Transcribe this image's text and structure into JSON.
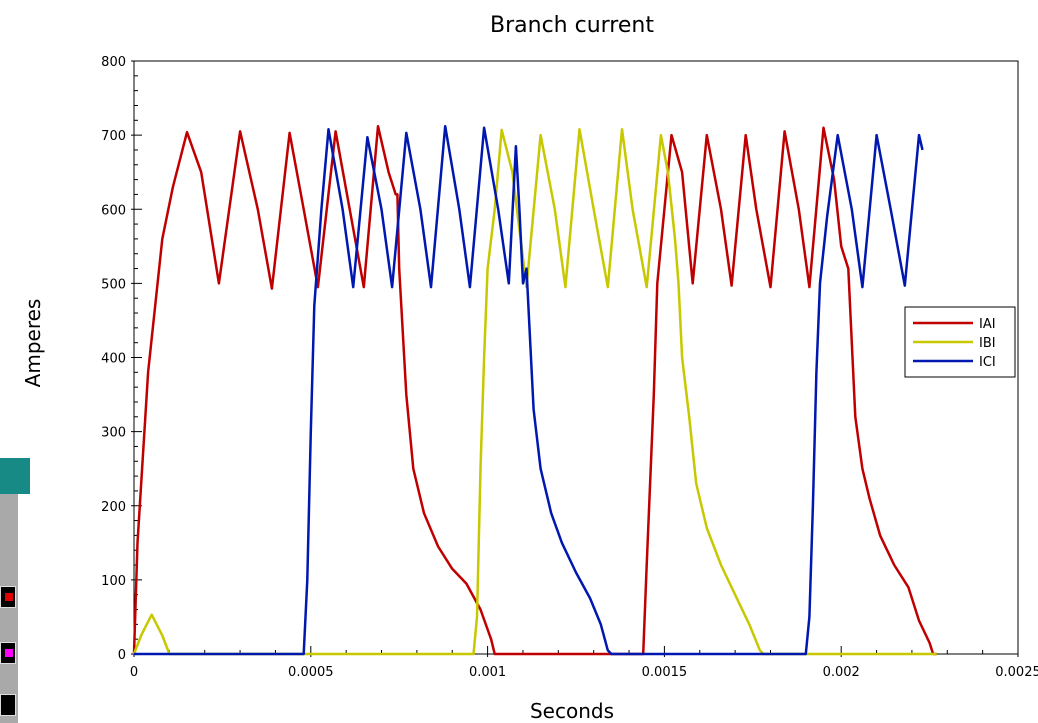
{
  "chart_data": {
    "type": "line",
    "title": "Branch current",
    "xlabel": "Seconds",
    "ylabel": "Amperes",
    "xlim": [
      0,
      0.0025
    ],
    "ylim": [
      0,
      800
    ],
    "x_ticks": [
      0,
      0.0005,
      0.001,
      0.0015,
      0.002,
      0.0025
    ],
    "x_tick_labels": [
      "0",
      "0.0005",
      "0.001",
      "0.0015",
      "0.002",
      "0.0025"
    ],
    "y_ticks": [
      0,
      100,
      200,
      300,
      400,
      500,
      600,
      700,
      800
    ],
    "y_tick_labels": [
      "0",
      "100",
      "200",
      "300",
      "400",
      "500",
      "600",
      "700",
      "800"
    ],
    "legend_position": "right",
    "grid": false,
    "series": [
      {
        "name": "IAI",
        "color": "#c00000",
        "points": [
          [
            0,
            0
          ],
          [
            1e-05,
            150
          ],
          [
            4e-05,
            380
          ],
          [
            8e-05,
            560
          ],
          [
            0.00011,
            630
          ],
          [
            0.00015,
            704
          ],
          [
            0.00019,
            650
          ],
          [
            0.00024,
            500
          ],
          [
            0.0003,
            705
          ],
          [
            0.00035,
            600
          ],
          [
            0.00039,
            493
          ],
          [
            0.00044,
            703
          ],
          [
            0.00048,
            600
          ],
          [
            0.00052,
            495
          ],
          [
            0.00057,
            705
          ],
          [
            0.00061,
            600
          ],
          [
            0.00065,
            495
          ],
          [
            0.00069,
            712
          ],
          [
            0.00072,
            650
          ],
          [
            0.00074,
            620
          ],
          [
            0.000745,
            620
          ],
          [
            0.00075,
            520
          ],
          [
            0.00077,
            350
          ],
          [
            0.00079,
            250
          ],
          [
            0.00082,
            190
          ],
          [
            0.00086,
            145
          ],
          [
            0.0009,
            115
          ],
          [
            0.00094,
            95
          ],
          [
            0.00098,
            60
          ],
          [
            0.00101,
            20
          ],
          [
            0.00102,
            0
          ],
          [
            0.00144,
            0
          ],
          [
            0.00145,
            120
          ],
          [
            0.00147,
            350
          ],
          [
            0.00148,
            500
          ],
          [
            0.0015,
            600
          ],
          [
            0.00152,
            700
          ],
          [
            0.00155,
            650
          ],
          [
            0.00158,
            500
          ],
          [
            0.00162,
            700
          ],
          [
            0.00166,
            600
          ],
          [
            0.00169,
            497
          ],
          [
            0.00173,
            700
          ],
          [
            0.00176,
            600
          ],
          [
            0.0018,
            495
          ],
          [
            0.00184,
            705
          ],
          [
            0.00188,
            600
          ],
          [
            0.00191,
            495
          ],
          [
            0.00195,
            710
          ],
          [
            0.00198,
            640
          ],
          [
            0.002,
            550
          ],
          [
            0.00202,
            520
          ],
          [
            0.00204,
            320
          ],
          [
            0.00206,
            250
          ],
          [
            0.00208,
            210
          ],
          [
            0.00211,
            160
          ],
          [
            0.00215,
            120
          ],
          [
            0.00219,
            90
          ],
          [
            0.00222,
            45
          ],
          [
            0.00225,
            15
          ],
          [
            0.00226,
            0
          ],
          [
            0.00227,
            0
          ]
        ]
      },
      {
        "name": "IBI",
        "color": "#c8c800",
        "points": [
          [
            0,
            0
          ],
          [
            2e-05,
            25
          ],
          [
            5e-05,
            53
          ],
          [
            8e-05,
            25
          ],
          [
            0.0001,
            0
          ],
          [
            0.00096,
            0
          ],
          [
            0.00097,
            50
          ],
          [
            0.00098,
            250
          ],
          [
            0.00099,
            400
          ],
          [
            0.001,
            520
          ],
          [
            0.00102,
            600
          ],
          [
            0.00104,
            707
          ],
          [
            0.00107,
            650
          ],
          [
            0.00111,
            495
          ],
          [
            0.00115,
            700
          ],
          [
            0.00119,
            600
          ],
          [
            0.00122,
            495
          ],
          [
            0.00126,
            708
          ],
          [
            0.0013,
            600
          ],
          [
            0.00134,
            495
          ],
          [
            0.00138,
            708
          ],
          [
            0.00141,
            600
          ],
          [
            0.00145,
            495
          ],
          [
            0.00149,
            700
          ],
          [
            0.00151,
            650
          ],
          [
            0.00153,
            560
          ],
          [
            0.00154,
            500
          ],
          [
            0.00155,
            400
          ],
          [
            0.00157,
            320
          ],
          [
            0.00159,
            230
          ],
          [
            0.00162,
            170
          ],
          [
            0.00166,
            120
          ],
          [
            0.0017,
            80
          ],
          [
            0.00174,
            40
          ],
          [
            0.00177,
            5
          ],
          [
            0.00178,
            0
          ],
          [
            0.00227,
            0
          ]
        ]
      },
      {
        "name": "ICI",
        "color": "#0018b0",
        "points": [
          [
            0,
            0
          ],
          [
            0.00048,
            0
          ],
          [
            0.00049,
            100
          ],
          [
            0.0005,
            300
          ],
          [
            0.00051,
            470
          ],
          [
            0.00053,
            600
          ],
          [
            0.00055,
            708
          ],
          [
            0.00059,
            600
          ],
          [
            0.00062,
            495
          ],
          [
            0.00066,
            697
          ],
          [
            0.0007,
            600
          ],
          [
            0.00073,
            495
          ],
          [
            0.00077,
            703
          ],
          [
            0.00081,
            600
          ],
          [
            0.00084,
            495
          ],
          [
            0.00088,
            712
          ],
          [
            0.00092,
            600
          ],
          [
            0.00095,
            495
          ],
          [
            0.00099,
            710
          ],
          [
            0.00103,
            600
          ],
          [
            0.00106,
            500
          ],
          [
            0.00108,
            685
          ],
          [
            0.00109,
            600
          ],
          [
            0.0011,
            500
          ],
          [
            0.00111,
            520
          ],
          [
            0.00113,
            330
          ],
          [
            0.00115,
            250
          ],
          [
            0.00118,
            190
          ],
          [
            0.00121,
            150
          ],
          [
            0.00125,
            110
          ],
          [
            0.00129,
            75
          ],
          [
            0.00132,
            40
          ],
          [
            0.00134,
            5
          ],
          [
            0.00135,
            0
          ],
          [
            0.0019,
            0
          ],
          [
            0.00191,
            50
          ],
          [
            0.00192,
            200
          ],
          [
            0.00193,
            380
          ],
          [
            0.00194,
            500
          ],
          [
            0.00196,
            590
          ],
          [
            0.00199,
            700
          ],
          [
            0.00203,
            600
          ],
          [
            0.00206,
            495
          ],
          [
            0.0021,
            700
          ],
          [
            0.00214,
            600
          ],
          [
            0.00218,
            497
          ],
          [
            0.00222,
            700
          ],
          [
            0.00223,
            680
          ]
        ]
      }
    ]
  }
}
